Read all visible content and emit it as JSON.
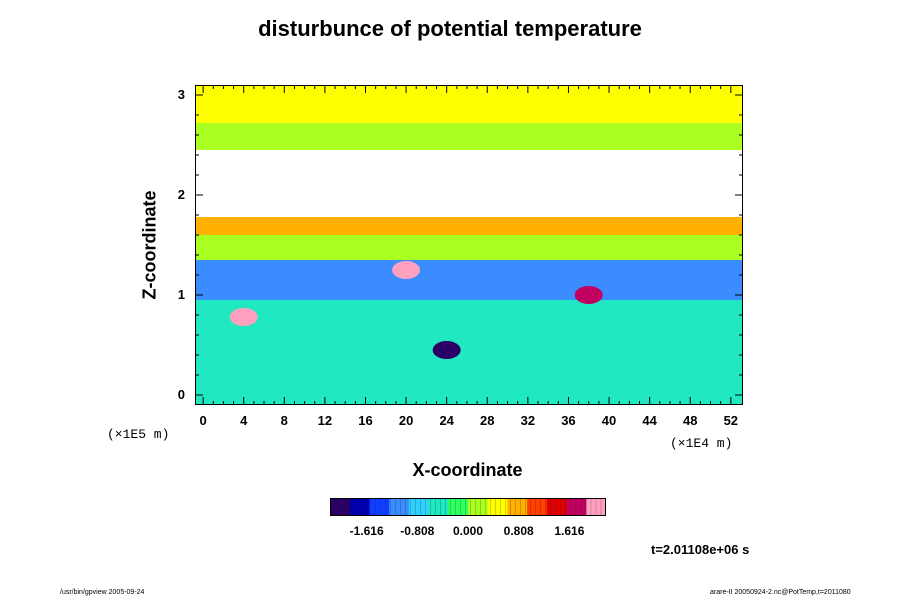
{
  "colors": {
    "colormap": [
      "#2b0066",
      "#0000b0",
      "#1040ff",
      "#3a8cff",
      "#30d0ff",
      "#20e8c0",
      "#30ff60",
      "#a8ff20",
      "#ffff00",
      "#ffb000",
      "#ff4000",
      "#e00000",
      "#c00060",
      "#ffa0c0"
    ],
    "field_background": "#3d8eff"
  },
  "chart_data": {
    "type": "heatmap",
    "title": "disturbunce of potential temperature",
    "xlabel": "X-coordinate",
    "ylabel": "Z-coordinate",
    "x_ticks": [
      0,
      4,
      8,
      12,
      16,
      20,
      24,
      28,
      32,
      36,
      40,
      44,
      48,
      52
    ],
    "z_ticks": [
      0,
      1,
      2,
      3
    ],
    "xlim": [
      -0.8,
      53.2
    ],
    "zlim": [
      -0.1,
      3.1
    ],
    "x_scale": "(×1E4 m)",
    "z_scale": "(×1E5 m)",
    "colorbar": {
      "ticks": [
        "-1.616",
        "-0.808",
        "0.000",
        "0.808",
        "1.616"
      ],
      "range": [
        -2.2,
        2.2
      ]
    },
    "bands": [
      {
        "z0": 2.72,
        "z1": 3.1,
        "value": 0.6
      },
      {
        "z0": 2.45,
        "z1": 2.72,
        "value": 0.2
      },
      {
        "z0": 1.78,
        "z1": 2.45,
        "value": null
      },
      {
        "z0": 1.6,
        "z1": 1.78,
        "value": 0.9
      },
      {
        "z0": 1.35,
        "z1": 1.6,
        "value": 0.1
      },
      {
        "z0": 0.95,
        "z1": 1.35,
        "value": -1.2
      },
      {
        "z0": -0.1,
        "z1": 0.95,
        "value": -0.5
      }
    ],
    "features": [
      {
        "x": 4,
        "z": 0.78,
        "value": 2.1
      },
      {
        "x": 20,
        "z": 1.25,
        "value": 1.9
      },
      {
        "x": 24,
        "z": 0.45,
        "value": -1.9
      },
      {
        "x": 38,
        "z": 1.0,
        "value": 1.8
      }
    ]
  },
  "annotations": {
    "time": "t=2.01108e+06 s",
    "footer_left": "/usr/bin/gpview 2005-09-24",
    "footer_right": "arare-II 20050924-2.nc@PotTemp,t=2011080"
  }
}
